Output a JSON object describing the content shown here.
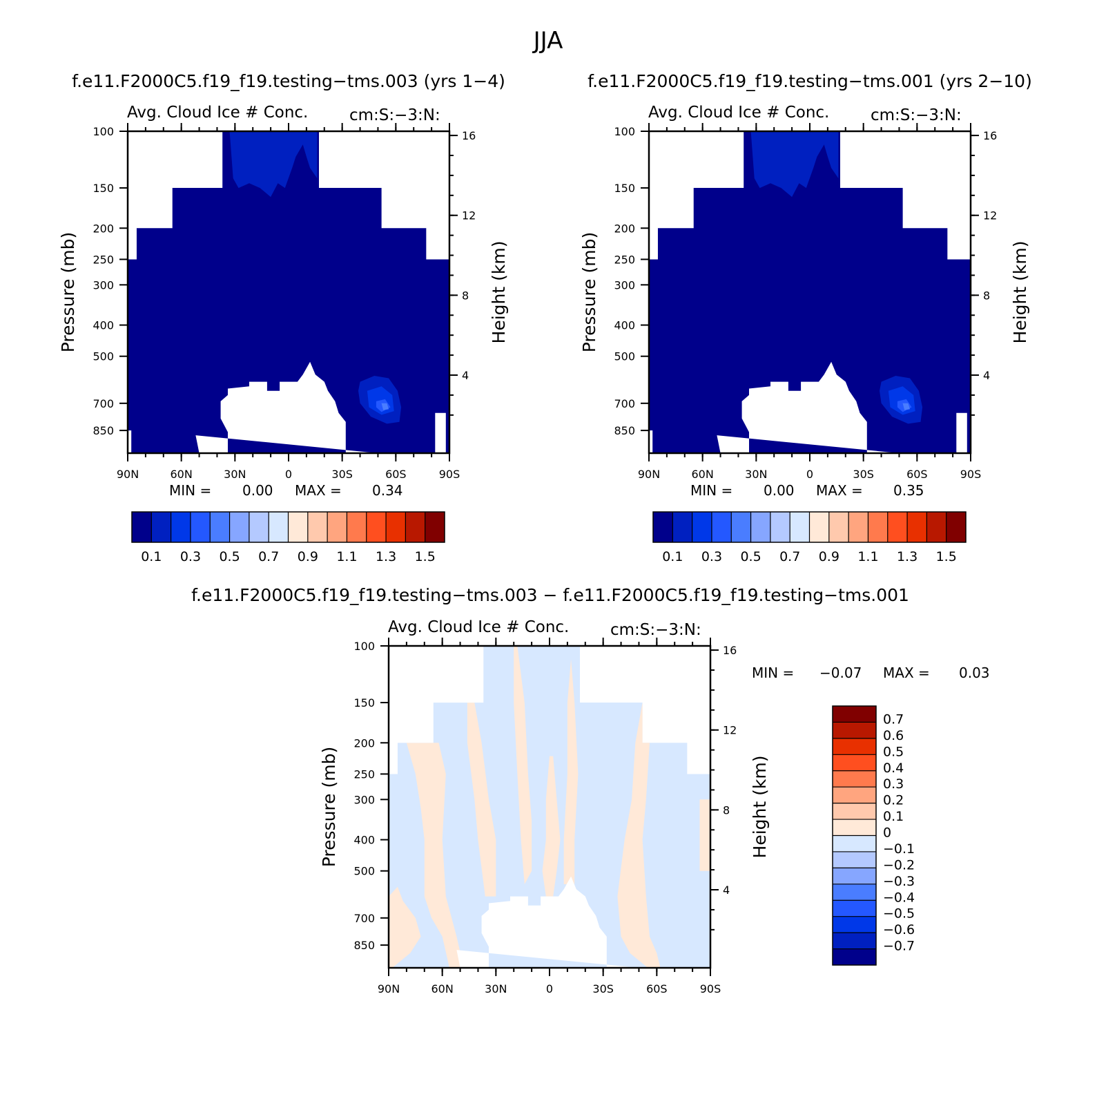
{
  "figure_title": "JJA",
  "panels": [
    {
      "case_title": "f.e11.F2000C5.f19_f19.testing−tms.003 (yrs 1−4)",
      "var_label": "Avg. Cloud Ice # Conc.",
      "units_label": "cm:S:−3:N:",
      "ylabel": "Pressure (mb)",
      "ylabel_right": "Height (km)",
      "min_label": "MIN =",
      "min_value": "0.00",
      "max_label": "MAX =",
      "max_value": "0.34"
    },
    {
      "case_title": "f.e11.F2000C5.f19_f19.testing−tms.001 (yrs 2−10)",
      "var_label": "Avg. Cloud Ice # Conc.",
      "units_label": "cm:S:−3:N:",
      "ylabel": "Pressure (mb)",
      "ylabel_right": "Height (km)",
      "min_label": "MIN =",
      "min_value": "0.00",
      "max_label": "MAX =",
      "max_value": "0.35"
    },
    {
      "case_title": "f.e11.F2000C5.f19_f19.testing−tms.003 − f.e11.F2000C5.f19_f19.testing−tms.001",
      "var_label": "Avg. Cloud Ice # Conc.",
      "units_label": "cm:S:−3:N:",
      "ylabel": "Pressure (mb)",
      "ylabel_right": "Height (km)",
      "min_label": "MIN =",
      "min_value": "−0.07",
      "max_label": "MAX =",
      "max_value": "0.03"
    }
  ],
  "chart_data": [
    {
      "type": "heatmap",
      "x_ticks": [
        "90N",
        "60N",
        "30N",
        "0",
        "30S",
        "60S",
        "90S"
      ],
      "y_ticks": [
        "100",
        "150",
        "200",
        "250",
        "300",
        "400",
        "500",
        "700",
        "850"
      ],
      "y_scale": "log",
      "y_range": [
        100,
        1000
      ],
      "y2_ticks": [
        "16",
        "12",
        "8",
        "4"
      ],
      "colorbar": {
        "orientation": "horizontal",
        "labels": [
          "0.1",
          "0.3",
          "0.5",
          "0.7",
          "0.9",
          "1.1",
          "1.3",
          "1.5"
        ],
        "colors": [
          "#00008b",
          "#0020c0",
          "#0038e8",
          "#2458ff",
          "#4a7dff",
          "#86a6ff",
          "#b4c9ff",
          "#d7e8ff",
          "#ffe9d8",
          "#ffc9ad",
          "#ffa57f",
          "#ff7a4d",
          "#ff4f1f",
          "#e83000",
          "#b81800",
          "#800000"
        ]
      },
      "min": 0.0,
      "max": 0.34
    },
    {
      "type": "heatmap",
      "x_ticks": [
        "90N",
        "60N",
        "30N",
        "0",
        "30S",
        "60S",
        "90S"
      ],
      "y_ticks": [
        "100",
        "150",
        "200",
        "250",
        "300",
        "400",
        "500",
        "700",
        "850"
      ],
      "y_scale": "log",
      "y_range": [
        100,
        1000
      ],
      "y2_ticks": [
        "16",
        "12",
        "8",
        "4"
      ],
      "colorbar": {
        "orientation": "horizontal",
        "labels": [
          "0.1",
          "0.3",
          "0.5",
          "0.7",
          "0.9",
          "1.1",
          "1.3",
          "1.5"
        ],
        "colors": [
          "#00008b",
          "#0020c0",
          "#0038e8",
          "#2458ff",
          "#4a7dff",
          "#86a6ff",
          "#b4c9ff",
          "#d7e8ff",
          "#ffe9d8",
          "#ffc9ad",
          "#ffa57f",
          "#ff7a4d",
          "#ff4f1f",
          "#e83000",
          "#b81800",
          "#800000"
        ]
      },
      "min": 0.0,
      "max": 0.35
    },
    {
      "type": "heatmap",
      "x_ticks": [
        "90N",
        "60N",
        "30N",
        "0",
        "30S",
        "60S",
        "90S"
      ],
      "y_ticks": [
        "100",
        "150",
        "200",
        "250",
        "300",
        "400",
        "500",
        "700",
        "850"
      ],
      "y_scale": "log",
      "y_range": [
        100,
        1000
      ],
      "y2_ticks": [
        "16",
        "12",
        "8",
        "4"
      ],
      "colorbar": {
        "orientation": "vertical",
        "labels": [
          "0.7",
          "0.6",
          "0.5",
          "0.4",
          "0.3",
          "0.2",
          "0.1",
          "0",
          "−0.1",
          "−0.2",
          "−0.3",
          "−0.4",
          "−0.5",
          "−0.6",
          "−0.7"
        ],
        "colors": [
          "#800000",
          "#b81800",
          "#e83000",
          "#ff4f1f",
          "#ff7a4d",
          "#ffa57f",
          "#ffc9ad",
          "#ffe9d8",
          "#d7e8ff",
          "#b4c9ff",
          "#86a6ff",
          "#4a7dff",
          "#2458ff",
          "#0038e8",
          "#0020c0",
          "#00008b"
        ]
      },
      "min": -0.07,
      "max": 0.03
    }
  ]
}
